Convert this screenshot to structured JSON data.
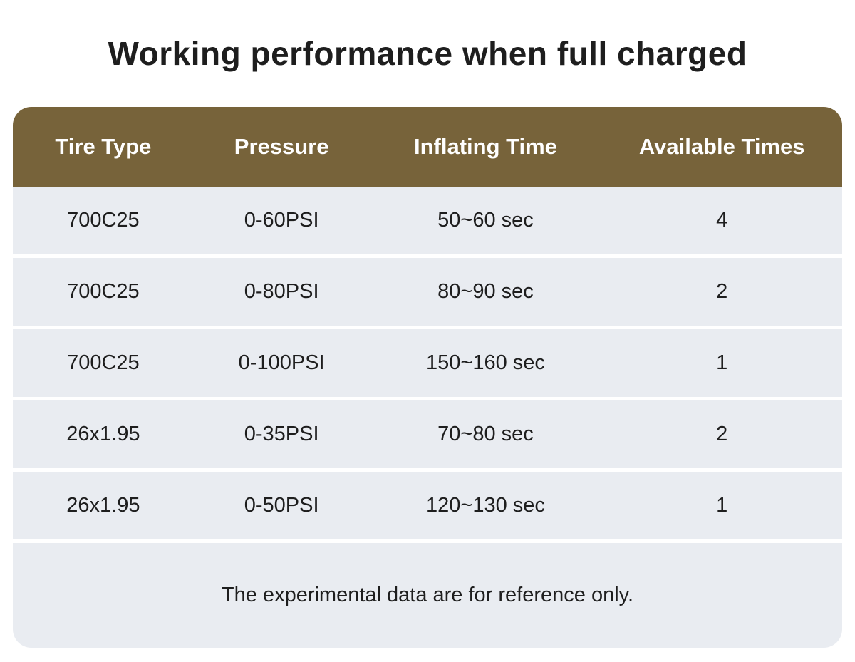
{
  "title": "Working performance when full charged",
  "chart_data": {
    "type": "table",
    "title": "Working performance when full charged",
    "columns": [
      "Tire Type",
      "Pressure",
      "Inflating Time",
      "Available Times"
    ],
    "rows": [
      [
        "700C25",
        "0-60PSI",
        "50~60 sec",
        "4"
      ],
      [
        "700C25",
        "0-80PSI",
        "80~90 sec",
        "2"
      ],
      [
        "700C25",
        "0-100PSI",
        "150~160 sec",
        "1"
      ],
      [
        "26x1.95",
        "0-35PSI",
        "70~80 sec",
        "2"
      ],
      [
        "26x1.95",
        "0-50PSI",
        "120~130 sec",
        "1"
      ]
    ],
    "footnote": "The experimental data are for reference only."
  },
  "colors": {
    "page_bg": "#ffffff",
    "header_bg": "#77633a",
    "header_text": "#ffffff",
    "row_bg": "#e9ecf1",
    "body_text": "#1e1e1e"
  }
}
